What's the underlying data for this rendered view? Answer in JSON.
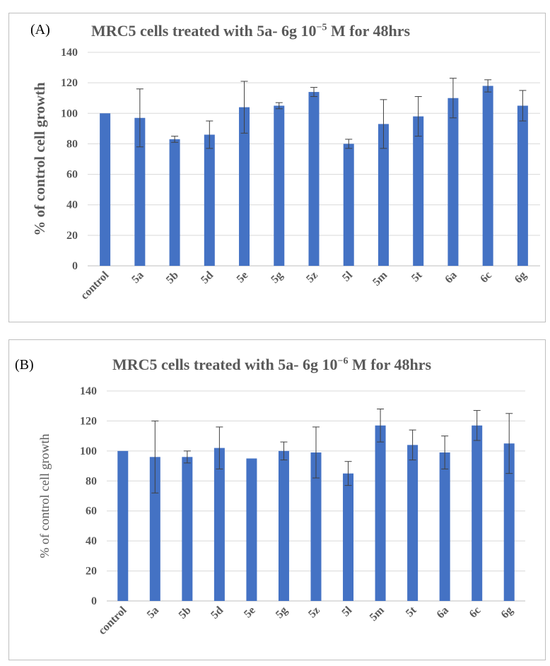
{
  "chart_data": [
    {
      "panel": "(A)",
      "type": "bar",
      "title_prefix": "MRC5 cells treated with 5a- 6g 10",
      "title_exponent": "−5",
      "title_suffix": " M for 48hrs",
      "ylabel": "% of control cell growth",
      "xlabel": "",
      "ylim": [
        0,
        140
      ],
      "yticks": [
        0,
        20,
        40,
        60,
        80,
        100,
        120,
        140
      ],
      "grid": true,
      "bar_color": "#4472c4",
      "categories": [
        "control",
        "5a",
        "5b",
        "5d",
        "5e",
        "5g",
        "5z",
        "5l",
        "5m",
        "5t",
        "6a",
        "6c",
        "6g"
      ],
      "values": [
        100,
        97,
        83,
        86,
        104,
        105,
        114,
        80,
        93,
        98,
        110,
        118,
        105
      ],
      "error": [
        0,
        19,
        2,
        9,
        17,
        2,
        3,
        3,
        16,
        13,
        13,
        4,
        10
      ]
    },
    {
      "panel": "(B)",
      "type": "bar",
      "title_prefix": "MRC5 cells treated with 5a- 6g 10",
      "title_exponent": "−6",
      "title_suffix": " M for 48hrs",
      "ylabel": "% of control cell growth",
      "xlabel": "",
      "ylim": [
        0,
        140
      ],
      "yticks": [
        0,
        20,
        40,
        60,
        80,
        100,
        120,
        140
      ],
      "grid": true,
      "bar_color": "#4472c4",
      "categories": [
        "control",
        "5a",
        "5b",
        "5d",
        "5e",
        "5g",
        "5z",
        "5l",
        "5m",
        "5t",
        "6a",
        "6c",
        "6g"
      ],
      "values": [
        100,
        96,
        96,
        102,
        95,
        100,
        99,
        85,
        117,
        104,
        99,
        117,
        105
      ],
      "error": [
        0,
        24,
        4,
        14,
        0,
        6,
        17,
        8,
        11,
        10,
        11,
        10,
        20
      ]
    }
  ]
}
